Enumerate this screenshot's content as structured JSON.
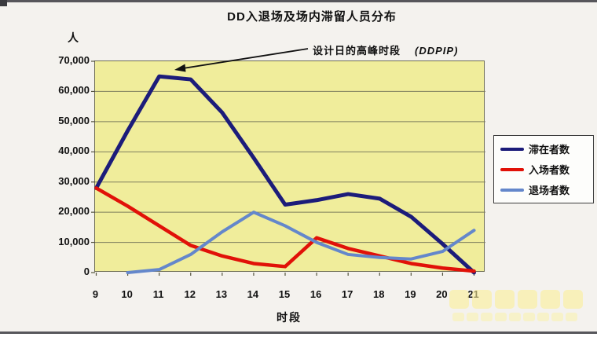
{
  "chart_data": {
    "type": "line",
    "title": "DD入退场及场内滞留人员分布",
    "xlabel": "时段",
    "ylabel": "人",
    "categories": [
      9,
      10,
      11,
      12,
      13,
      14,
      15,
      16,
      17,
      18,
      19,
      20,
      21
    ],
    "ylim": [
      0,
      70000
    ],
    "ytick_step": 10000,
    "ytick_labels": [
      "0",
      "10,000",
      "20,000",
      "30,000",
      "40,000",
      "50,000",
      "60,000",
      "70,000"
    ],
    "grid": true,
    "legend_position": "right",
    "plot_bg_color": "#f0ed9b",
    "series": [
      {
        "name": "滞在者数",
        "color": "#1c1c7a",
        "values": [
          28000,
          47000,
          65000,
          64000,
          53000,
          38000,
          22500,
          24000,
          26000,
          24500,
          18500,
          9500,
          0
        ]
      },
      {
        "name": "入场者数",
        "color": "#e11108",
        "values": [
          28000,
          22000,
          15500,
          9000,
          5500,
          3000,
          2000,
          11500,
          8000,
          5500,
          3000,
          1500,
          500
        ]
      },
      {
        "name": "退场者数",
        "color": "#6487cb",
        "values": [
          null,
          0,
          1000,
          6000,
          13500,
          20000,
          15500,
          10000,
          6000,
          5000,
          4500,
          7000,
          14000
        ]
      }
    ],
    "annotation": {
      "text": "设计日的高峰时段",
      "suffix": "(DDPIP)",
      "points_to": {
        "category": 11,
        "value": 65000
      }
    }
  }
}
